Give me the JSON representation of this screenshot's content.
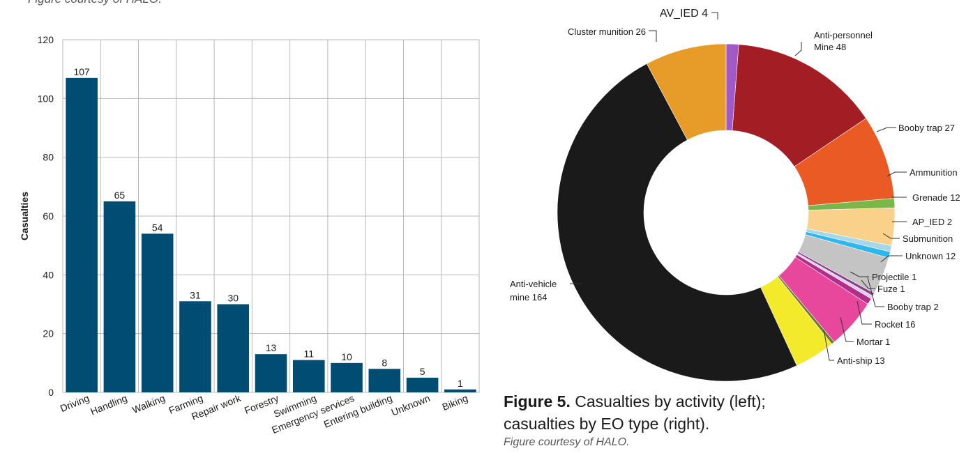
{
  "top_credit": "Figure courtesy of HALO.",
  "caption": {
    "label": "Figure 5.",
    "text": " Casualties by activity (left); casualties by EO type (right).",
    "credit": "Figure courtesy of HALO."
  },
  "chart_data": [
    {
      "type": "bar",
      "title": "",
      "xlabel": "",
      "ylabel": "Casualties",
      "ylim": [
        0,
        120
      ],
      "yticks": [
        0,
        20,
        40,
        60,
        80,
        100,
        120
      ],
      "grid": true,
      "bar_color": "#004c72",
      "categories": [
        "Driving",
        "Handling",
        "Walking",
        "Farming",
        "Repair work",
        "Forestry",
        "Swimming",
        "Emergency services",
        "Entering building",
        "Unknown",
        "Biking"
      ],
      "values": [
        107,
        65,
        54,
        31,
        30,
        13,
        11,
        10,
        8,
        5,
        1
      ]
    },
    {
      "type": "pie",
      "title": "",
      "slices": [
        {
          "label": "AV_IED",
          "value": 4,
          "color": "#a259c8"
        },
        {
          "label": "Anti-personnel Mine",
          "value": 48,
          "color": "#a21e24"
        },
        {
          "label": "Booby trap",
          "value": 27,
          "color": "#ea5a24"
        },
        {
          "label": "Ammunition",
          "value": 3,
          "color": "#7ab648"
        },
        {
          "label": "Grenade",
          "value": 12,
          "color": "#f9d18a"
        },
        {
          "label": "AP_IED",
          "value": 2,
          "color": "#a8d8e8"
        },
        {
          "label": "Submunition",
          "value": 2,
          "color": "#2fb6ea"
        },
        {
          "label": "Unknown",
          "value": 12,
          "color": "#c4c4c4"
        },
        {
          "label": "Projectile",
          "value": 1,
          "color": "#8a3e8e"
        },
        {
          "label": "Fuze",
          "value": 1,
          "color": "#ddd0e4"
        },
        {
          "label": "Booby trap",
          "value": 2,
          "color": "#b42d8a"
        },
        {
          "label": "Rocket",
          "value": 16,
          "color": "#e8489c"
        },
        {
          "label": "Mortar",
          "value": 1,
          "color": "#6b7a2a"
        },
        {
          "label": "Anti-ship",
          "value": 13,
          "color": "#f2ea2a"
        },
        {
          "label": "Anti-vehicle mine",
          "value": 164,
          "color": "#1a1a1a"
        },
        {
          "label": "Cluster munition",
          "value": 26,
          "color": "#e79c2a"
        }
      ],
      "callouts": [
        {
          "lines": [
            "AV_IED 4"
          ]
        },
        {
          "lines": [
            "Anti-personnel",
            "Mine 48"
          ]
        },
        {
          "lines": [
            "Booby trap 27"
          ]
        },
        {
          "lines": [
            "Ammunition"
          ]
        },
        {
          "lines": [
            "Grenade 12"
          ]
        },
        {
          "lines": [
            "AP_IED 2"
          ]
        },
        {
          "lines": [
            "Submunition"
          ]
        },
        {
          "lines": [
            "Unknown 12"
          ]
        },
        {
          "lines": [
            "Projectile 1"
          ]
        },
        {
          "lines": [
            "Fuze 1"
          ]
        },
        {
          "lines": [
            "Booby trap 2"
          ]
        },
        {
          "lines": [
            "Rocket 16"
          ]
        },
        {
          "lines": [
            "Mortar 1"
          ]
        },
        {
          "lines": [
            "Anti-ship 13"
          ]
        },
        {
          "lines": [
            "Anti-vehicle",
            "mine 164"
          ]
        },
        {
          "lines": [
            "Cluster munition 26"
          ]
        }
      ]
    }
  ]
}
